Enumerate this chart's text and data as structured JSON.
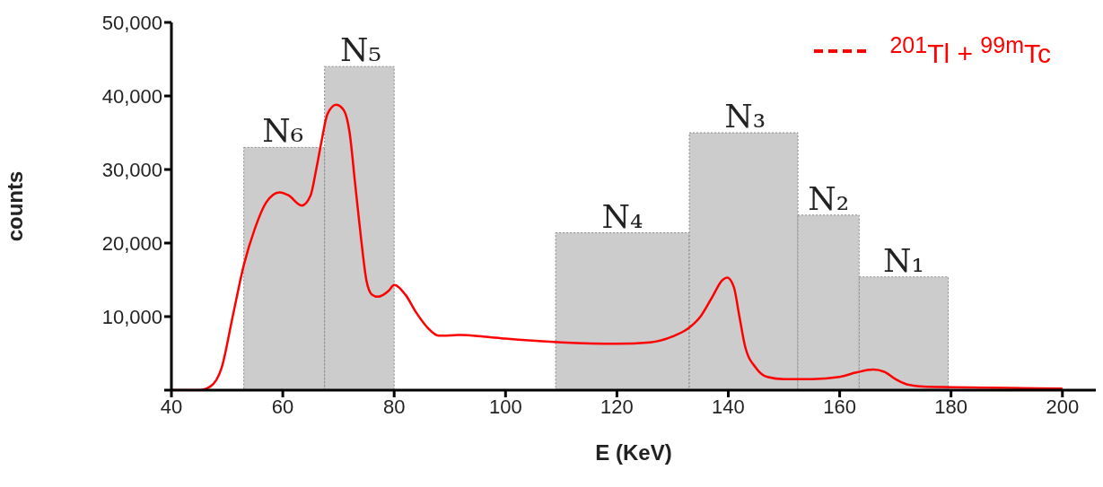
{
  "chart_data": {
    "type": "line",
    "xlabel": "E (KeV)",
    "ylabel": "counts",
    "xlim": [
      40,
      206
    ],
    "xticks": [
      40,
      60,
      80,
      100,
      120,
      140,
      160,
      180,
      200
    ],
    "ylim": [
      0,
      50000
    ],
    "yticks": [
      {
        "value": 0,
        "label": null
      },
      {
        "value": 10000,
        "label": "10,000"
      },
      {
        "value": 20000,
        "label": "20,000"
      },
      {
        "value": 30000,
        "label": "30,000"
      },
      {
        "value": 40000,
        "label": "40,000"
      },
      {
        "value": 50000,
        "label": "50,000"
      }
    ],
    "legend": "top right",
    "line_style": "solid",
    "marker": "none",
    "series": [
      {
        "type": "histogram",
        "color": "#cccccc",
        "bins": [
          53,
          67.5,
          80,
          109,
          133,
          152.5,
          163.5,
          179.5
        ],
        "values": [
          33000,
          44000,
          null,
          21400,
          35000,
          23800,
          15400
        ]
      },
      {
        "name": "$^{201}$Tl + $^{99m}$Tc",
        "color": "#ff0000",
        "x": [
          40,
          45,
          47,
          49,
          51,
          53,
          55,
          57,
          59.4,
          61,
          63.4,
          65,
          66,
          67,
          68,
          69.6,
          71,
          72,
          73,
          74,
          75,
          76,
          77.1,
          79,
          80,
          82,
          84,
          86,
          88,
          92,
          96,
          100,
          110,
          120,
          126,
          130,
          133,
          135,
          137,
          139,
          139.8,
          141,
          142,
          143,
          145,
          147,
          150,
          155,
          160,
          163,
          166,
          168,
          170,
          172,
          175,
          180,
          190,
          200
        ],
        "values": [
          0,
          0,
          500,
          3000,
          10000,
          17000,
          22000,
          25500,
          26900,
          26500,
          25100,
          26500,
          30000,
          34000,
          37500,
          38800,
          38000,
          35000,
          28000,
          21000,
          15000,
          13000,
          12700,
          13500,
          14300,
          13000,
          10500,
          8500,
          7400,
          7500,
          7300,
          7000,
          6500,
          6300,
          6500,
          7300,
          8500,
          10000,
          12500,
          15000,
          15300,
          14000,
          10000,
          6000,
          3000,
          1800,
          1500,
          1500,
          1800,
          2400,
          2800,
          2500,
          1500,
          800,
          500,
          400,
          300,
          200
        ]
      }
    ],
    "annotations": [
      {
        "text": "N₆",
        "x": 60,
        "y": 33000
      },
      {
        "text": "N₅",
        "x": 74,
        "y": 44000
      },
      {
        "text": "N₄",
        "x": 121,
        "y": 21400
      },
      {
        "text": "N₃",
        "x": 143,
        "y": 35000
      },
      {
        "text": "N₂",
        "x": 158,
        "y": 23800
      },
      {
        "text": "N₁",
        "x": 171.5,
        "y": 15400
      }
    ]
  }
}
